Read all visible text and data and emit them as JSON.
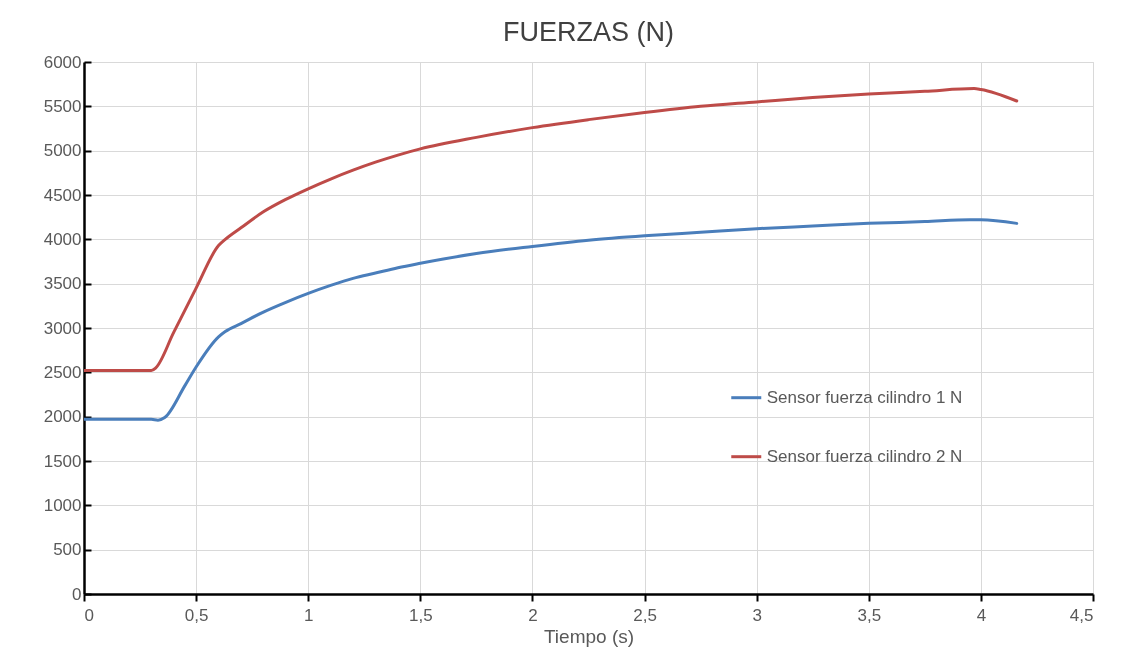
{
  "chart_data": {
    "type": "line",
    "title": "FUERZAS (N)",
    "xlabel": "Tiempo (s)",
    "xlim": [
      0,
      4.5
    ],
    "xticks": [
      0,
      {
        "value": 0.5,
        "label": "0,5"
      },
      1,
      {
        "value": 1.5,
        "label": "1,5"
      },
      2,
      {
        "value": 2.5,
        "label": "2,5"
      },
      3,
      {
        "value": 3.5,
        "label": "3,5"
      },
      4,
      {
        "value": 4.5,
        "label": "4,5"
      }
    ],
    "ylim": [
      0,
      6000
    ],
    "yticks": [
      0,
      500,
      1000,
      1500,
      2000,
      2500,
      3000,
      3500,
      4000,
      4500,
      5000,
      5500,
      6000
    ],
    "grid": true,
    "legend": "right",
    "marker": "none",
    "line_style": "solid",
    "series": [
      {
        "name": "Sensor fuerza cilindro 1    N",
        "color": "#4a7ebb",
        "x": [
          0,
          0.3,
          0.33,
          0.36,
          0.45,
          0.5,
          0.6,
          0.63,
          0.7,
          0.8,
          0.9,
          1.0,
          1.1,
          1.2,
          1.3,
          1.4,
          1.5,
          1.75,
          2.0,
          2.25,
          2.5,
          2.75,
          3.0,
          3.25,
          3.5,
          3.75,
          3.95,
          4.0,
          4.16
        ],
        "values": [
          1970,
          1970,
          1960,
          1990,
          2350,
          2560,
          2900,
          2960,
          3050,
          3180,
          3290,
          3390,
          3480,
          3560,
          3620,
          3680,
          3730,
          3840,
          3920,
          3990,
          4040,
          4080,
          4120,
          4150,
          4180,
          4200,
          4220,
          4220,
          4180
        ]
      },
      {
        "name": "Sensor fuerza cilindro 2      N",
        "color": "#be4b48",
        "x": [
          0,
          0.3,
          0.32,
          0.4,
          0.5,
          0.6,
          0.63,
          0.7,
          0.8,
          0.9,
          1.0,
          1.1,
          1.2,
          1.3,
          1.4,
          1.5,
          1.75,
          2.0,
          2.25,
          2.5,
          2.75,
          3.0,
          3.25,
          3.5,
          3.75,
          3.97,
          4.0,
          4.16
        ],
        "values": [
          2520,
          2520,
          2550,
          2950,
          3450,
          3930,
          4000,
          4130,
          4310,
          4450,
          4570,
          4680,
          4780,
          4870,
          4950,
          5020,
          5150,
          5260,
          5350,
          5430,
          5500,
          5550,
          5600,
          5640,
          5670,
          5700,
          5690,
          5560
        ]
      }
    ]
  }
}
